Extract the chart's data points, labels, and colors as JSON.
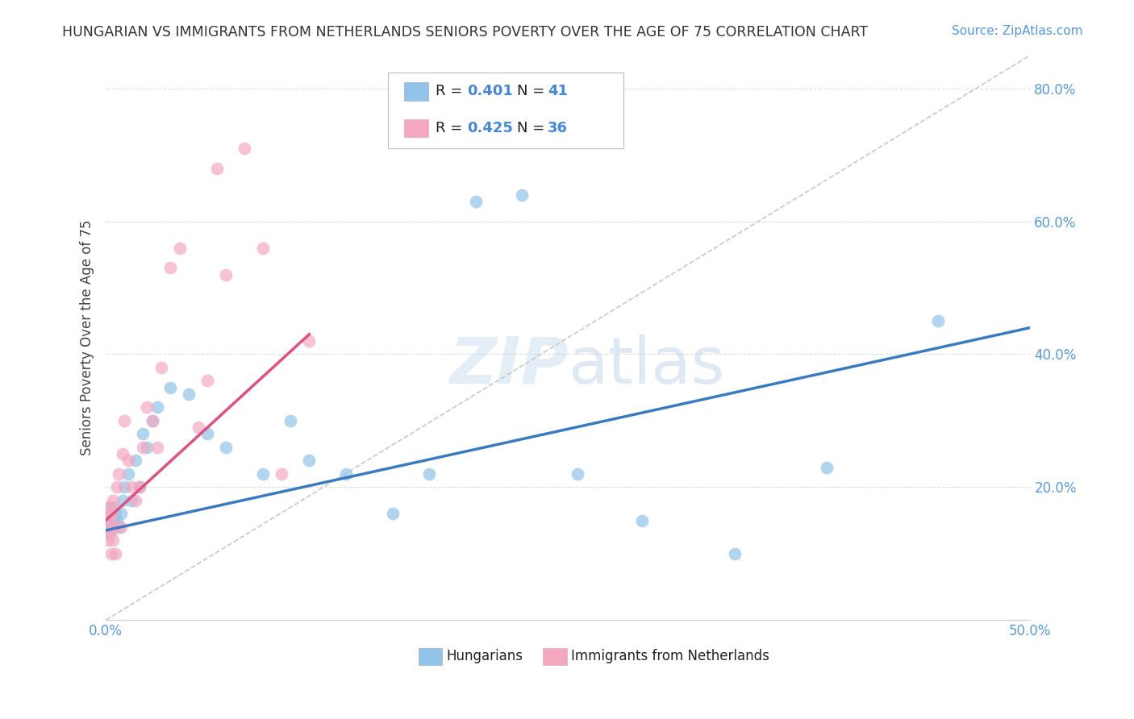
{
  "title": "HUNGARIAN VS IMMIGRANTS FROM NETHERLANDS SENIORS POVERTY OVER THE AGE OF 75 CORRELATION CHART",
  "source": "Source: ZipAtlas.com",
  "ylabel": "Seniors Poverty Over the Age of 75",
  "xlim": [
    0.0,
    0.5
  ],
  "ylim": [
    0.0,
    0.85
  ],
  "ytick_vals": [
    0.0,
    0.2,
    0.4,
    0.6,
    0.8
  ],
  "ytick_labels": [
    "",
    "20.0%",
    "40.0%",
    "60.0%",
    "80.0%"
  ],
  "xtick_vals": [
    0.0,
    0.5
  ],
  "xtick_labels": [
    "0.0%",
    "50.0%"
  ],
  "color_blue": "#91c4e8",
  "color_pink": "#f4a8c0",
  "color_blue_line": "#3a7abf",
  "color_pink_line": "#e05080",
  "color_diag": "#c8c8c8",
  "blue_x": [
    0.001,
    0.001,
    0.002,
    0.002,
    0.002,
    0.003,
    0.003,
    0.004,
    0.004,
    0.005,
    0.005,
    0.006,
    0.007,
    0.008,
    0.009,
    0.01,
    0.012,
    0.014,
    0.016,
    0.018,
    0.02,
    0.022,
    0.025,
    0.028,
    0.035,
    0.045,
    0.055,
    0.065,
    0.085,
    0.1,
    0.11,
    0.13,
    0.155,
    0.175,
    0.2,
    0.225,
    0.255,
    0.29,
    0.34,
    0.39,
    0.45
  ],
  "blue_y": [
    0.14,
    0.16,
    0.13,
    0.15,
    0.17,
    0.14,
    0.16,
    0.15,
    0.17,
    0.14,
    0.16,
    0.15,
    0.14,
    0.16,
    0.18,
    0.2,
    0.22,
    0.18,
    0.24,
    0.2,
    0.28,
    0.26,
    0.3,
    0.32,
    0.35,
    0.34,
    0.28,
    0.26,
    0.22,
    0.3,
    0.24,
    0.22,
    0.16,
    0.22,
    0.63,
    0.64,
    0.22,
    0.15,
    0.1,
    0.23,
    0.45
  ],
  "pink_x": [
    0.001,
    0.001,
    0.001,
    0.002,
    0.002,
    0.002,
    0.003,
    0.003,
    0.004,
    0.004,
    0.005,
    0.005,
    0.006,
    0.007,
    0.008,
    0.009,
    0.01,
    0.012,
    0.014,
    0.016,
    0.018,
    0.02,
    0.022,
    0.025,
    0.028,
    0.03,
    0.035,
    0.04,
    0.05,
    0.055,
    0.06,
    0.065,
    0.075,
    0.085,
    0.095,
    0.11
  ],
  "pink_y": [
    0.14,
    0.12,
    0.16,
    0.13,
    0.15,
    0.17,
    0.1,
    0.16,
    0.12,
    0.18,
    0.14,
    0.1,
    0.2,
    0.22,
    0.14,
    0.25,
    0.3,
    0.24,
    0.2,
    0.18,
    0.2,
    0.26,
    0.32,
    0.3,
    0.26,
    0.38,
    0.53,
    0.56,
    0.29,
    0.36,
    0.68,
    0.52,
    0.71,
    0.56,
    0.22,
    0.42
  ],
  "blue_line_x": [
    0.0,
    0.5
  ],
  "blue_line_y": [
    0.135,
    0.44
  ],
  "pink_line_x": [
    0.0,
    0.11
  ],
  "pink_line_y": [
    0.15,
    0.43
  ],
  "background_color": "#ffffff",
  "grid_color": "#dddddd"
}
